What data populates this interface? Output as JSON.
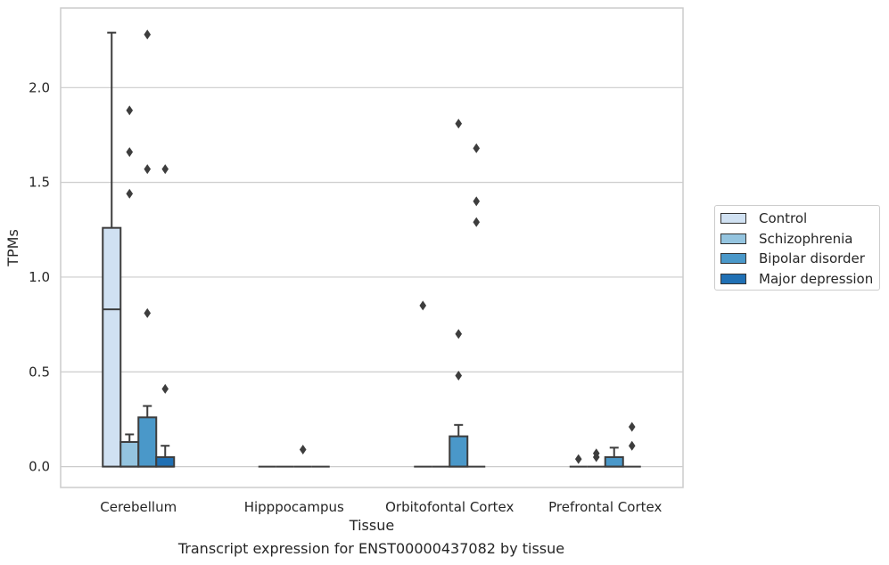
{
  "chart_data": {
    "type": "box",
    "title": "",
    "caption": "Transcript expression for ENST00000437082 by tissue",
    "xlabel": "Tissue",
    "ylabel": "TPMs",
    "ylim": [
      -0.11,
      2.42
    ],
    "yticks": [
      {
        "value": 0.0,
        "label": "0.0"
      },
      {
        "value": 0.5,
        "label": "0.5"
      },
      {
        "value": 1.0,
        "label": "1.0"
      },
      {
        "value": 1.5,
        "label": "1.5"
      },
      {
        "value": 2.0,
        "label": "2.0"
      }
    ],
    "grid": "horizontal",
    "legend_position": "right",
    "categories": [
      "Cerebellum",
      "Hipppocampus",
      "Orbitofontal Cortex",
      "Prefrontal Cortex"
    ],
    "series": [
      {
        "name": "Control",
        "color": "#d0e1f2",
        "boxes": [
          {
            "q1": 0.0,
            "median": 0.83,
            "q3": 1.26,
            "whisker_low": 0.0,
            "whisker_high": 2.29,
            "outliers": []
          },
          {
            "q1": 0.0,
            "median": 0.0,
            "q3": 0.0,
            "whisker_low": 0.0,
            "whisker_high": 0.0,
            "outliers": []
          },
          {
            "q1": 0.0,
            "median": 0.0,
            "q3": 0.0,
            "whisker_low": 0.0,
            "whisker_high": 0.0,
            "outliers": [
              0.85
            ]
          },
          {
            "q1": 0.0,
            "median": 0.0,
            "q3": 0.0,
            "whisker_low": 0.0,
            "whisker_high": 0.0,
            "outliers": [
              0.04
            ]
          }
        ]
      },
      {
        "name": "Schizophrenia",
        "color": "#94c4df",
        "boxes": [
          {
            "q1": 0.0,
            "median": 0.0,
            "q3": 0.13,
            "whisker_low": 0.0,
            "whisker_high": 0.17,
            "outliers": [
              1.88,
              1.66,
              1.44
            ]
          },
          {
            "q1": 0.0,
            "median": 0.0,
            "q3": 0.0,
            "whisker_low": 0.0,
            "whisker_high": 0.0,
            "outliers": []
          },
          {
            "q1": 0.0,
            "median": 0.0,
            "q3": 0.0,
            "whisker_low": 0.0,
            "whisker_high": 0.0,
            "outliers": []
          },
          {
            "q1": 0.0,
            "median": 0.0,
            "q3": 0.0,
            "whisker_low": 0.0,
            "whisker_high": 0.0,
            "outliers": [
              0.07,
              0.05
            ]
          }
        ]
      },
      {
        "name": "Bipolar disorder",
        "color": "#4a98c9",
        "boxes": [
          {
            "q1": 0.0,
            "median": 0.0,
            "q3": 0.26,
            "whisker_low": 0.0,
            "whisker_high": 0.32,
            "outliers": [
              2.28,
              1.57,
              0.81
            ]
          },
          {
            "q1": 0.0,
            "median": 0.0,
            "q3": 0.0,
            "whisker_low": 0.0,
            "whisker_high": 0.0,
            "outliers": [
              0.09
            ]
          },
          {
            "q1": 0.0,
            "median": 0.0,
            "q3": 0.16,
            "whisker_low": 0.0,
            "whisker_high": 0.22,
            "outliers": [
              1.81,
              0.7,
              0.48
            ]
          },
          {
            "q1": 0.0,
            "median": 0.0,
            "q3": 0.05,
            "whisker_low": 0.0,
            "whisker_high": 0.1,
            "outliers": []
          }
        ]
      },
      {
        "name": "Major depression",
        "color": "#2070b4",
        "boxes": [
          {
            "q1": 0.0,
            "median": 0.0,
            "q3": 0.05,
            "whisker_low": 0.0,
            "whisker_high": 0.11,
            "outliers": [
              1.57,
              0.41
            ]
          },
          {
            "q1": 0.0,
            "median": 0.0,
            "q3": 0.0,
            "whisker_low": 0.0,
            "whisker_high": 0.0,
            "outliers": []
          },
          {
            "q1": 0.0,
            "median": 0.0,
            "q3": 0.0,
            "whisker_low": 0.0,
            "whisker_high": 0.0,
            "outliers": [
              1.68,
              1.4,
              1.29
            ]
          },
          {
            "q1": 0.0,
            "median": 0.0,
            "q3": 0.0,
            "whisker_low": 0.0,
            "whisker_high": 0.0,
            "outliers": [
              0.21,
              0.11
            ]
          }
        ]
      }
    ]
  }
}
